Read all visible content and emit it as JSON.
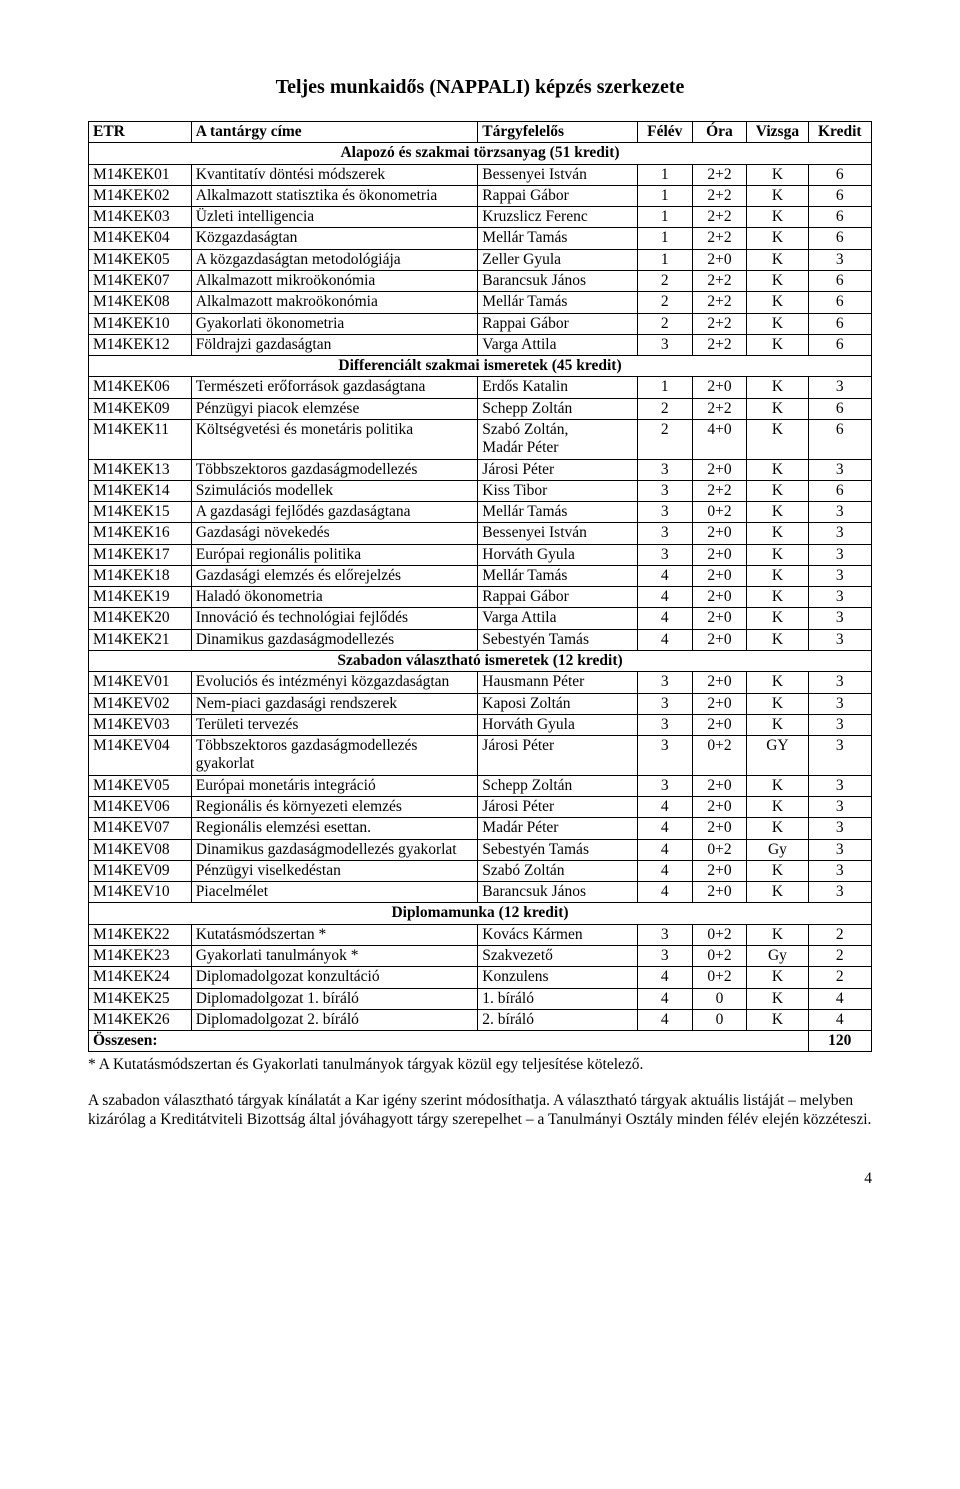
{
  "title": "Teljes munkaidős (NAPPALI) képzés szerkezete",
  "headers": [
    "ETR",
    "A tantárgy címe",
    "Tárgyfelelős",
    "Félév",
    "Óra",
    "Vizsga",
    "Kredit"
  ],
  "sections": [
    {
      "label": "Alapozó és szakmai törzsanyag (51 kredit)",
      "rows": [
        [
          "M14KEK01",
          "Kvantitatív döntési módszerek",
          "Bessenyei István",
          "1",
          "2+2",
          "K",
          "6"
        ],
        [
          "M14KEK02",
          "Alkalmazott statisztika és ökonometria",
          "Rappai Gábor",
          "1",
          "2+2",
          "K",
          "6"
        ],
        [
          "M14KEK03",
          "Üzleti intelligencia",
          "Kruzslicz Ferenc",
          "1",
          "2+2",
          "K",
          "6"
        ],
        [
          "M14KEK04",
          "Közgazdaságtan",
          "Mellár Tamás",
          "1",
          "2+2",
          "K",
          "6"
        ],
        [
          "M14KEK05",
          "A közgazdaságtan metodológiája",
          "Zeller Gyula",
          "1",
          "2+0",
          "K",
          "3"
        ],
        [
          "M14KEK07",
          "Alkalmazott mikroökonómia",
          "Barancsuk János",
          "2",
          "2+2",
          "K",
          "6"
        ],
        [
          "M14KEK08",
          "Alkalmazott makroökonómia",
          "Mellár Tamás",
          "2",
          "2+2",
          "K",
          "6"
        ],
        [
          "M14KEK10",
          "Gyakorlati ökonometria",
          "Rappai Gábor",
          "2",
          "2+2",
          "K",
          "6"
        ],
        [
          "M14KEK12",
          "Földrajzi gazdaságtan",
          "Varga Attila",
          "3",
          "2+2",
          "K",
          "6"
        ]
      ]
    },
    {
      "label": "Differenciált szakmai ismeretek (45 kredit)",
      "rows": [
        [
          "M14KEK06",
          "Természeti erőforrások gazdaságtana",
          "Erdős Katalin",
          "1",
          "2+0",
          "K",
          "3"
        ],
        [
          "M14KEK09",
          "Pénzügyi piacok elemzése",
          "Schepp Zoltán",
          "2",
          "2+2",
          "K",
          "6"
        ],
        [
          "M14KEK11",
          "Költségvetési és monetáris politika",
          "Szabó Zoltán,\nMadár Péter",
          "2",
          "4+0",
          "K",
          "6"
        ],
        [
          "M14KEK13",
          "Többszektoros gazdaságmodellezés",
          "Járosi Péter",
          "3",
          "2+0",
          "K",
          "3"
        ],
        [
          "M14KEK14",
          "Szimulációs modellek",
          "Kiss Tibor",
          "3",
          "2+2",
          "K",
          "6"
        ],
        [
          "M14KEK15",
          "A gazdasági fejlődés gazdaságtana",
          "Mellár Tamás",
          "3",
          "0+2",
          "K",
          "3"
        ],
        [
          "M14KEK16",
          "Gazdasági növekedés",
          "Bessenyei István",
          "3",
          "2+0",
          "K",
          "3"
        ],
        [
          "M14KEK17",
          "Európai regionális politika",
          "Horváth Gyula",
          "3",
          "2+0",
          "K",
          "3"
        ],
        [
          "M14KEK18",
          "Gazdasági elemzés és előrejelzés",
          "Mellár Tamás",
          "4",
          "2+0",
          "K",
          "3"
        ],
        [
          "M14KEK19",
          "Haladó ökonometria",
          "Rappai Gábor",
          "4",
          "2+0",
          "K",
          "3"
        ],
        [
          "M14KEK20",
          "Innováció és technológiai fejlődés",
          "Varga Attila",
          "4",
          "2+0",
          "K",
          "3"
        ],
        [
          "M14KEK21",
          "Dinamikus gazdaságmodellezés",
          "Sebestyén Tamás",
          "4",
          "2+0",
          "K",
          "3"
        ]
      ]
    },
    {
      "label": "Szabadon választható ismeretek (12 kredit)",
      "rows": [
        [
          "M14KEV01",
          "Evoluciós és intézményi közgazdaságtan",
          "Hausmann Péter",
          "3",
          "2+0",
          "K",
          "3"
        ],
        [
          "M14KEV02",
          "Nem-piaci gazdasági rendszerek",
          "Kaposi Zoltán",
          "3",
          "2+0",
          "K",
          "3"
        ],
        [
          "M14KEV03",
          "Területi tervezés",
          "Horváth Gyula",
          "3",
          "2+0",
          "K",
          "3"
        ],
        [
          "M14KEV04",
          "Többszektoros gazdaságmodellezés gyakorlat",
          "Járosi Péter",
          "3",
          "0+2",
          "GY",
          "3"
        ],
        [
          "M14KEV05",
          "Európai monetáris integráció",
          "Schepp Zoltán",
          "3",
          "2+0",
          "K",
          "3"
        ],
        [
          "M14KEV06",
          "Regionális és környezeti elemzés",
          "Járosi Péter",
          "4",
          "2+0",
          "K",
          "3"
        ],
        [
          "M14KEV07",
          "Regionális elemzési esettan.",
          "Madár Péter",
          "4",
          "2+0",
          "K",
          "3"
        ],
        [
          "M14KEV08",
          "Dinamikus gazdaságmodellezés gyakorlat",
          "Sebestyén Tamás",
          "4",
          "0+2",
          "Gy",
          "3"
        ],
        [
          "M14KEV09",
          "Pénzügyi viselkedéstan",
          "Szabó Zoltán",
          "4",
          "2+0",
          "K",
          "3"
        ],
        [
          "M14KEV10",
          "Piacelmélet",
          "Barancsuk János",
          "4",
          "2+0",
          "K",
          "3"
        ]
      ]
    },
    {
      "label": "Diplomamunka (12 kredit)",
      "rows": [
        [
          "M14KEK22",
          "Kutatásmódszertan *",
          "Kovács Kármen",
          "3",
          "0+2",
          "K",
          "2"
        ],
        [
          "M14KEK23",
          "Gyakorlati tanulmányok *",
          "Szakvezető",
          "3",
          "0+2",
          "Gy",
          "2"
        ],
        [
          "M14KEK24",
          "Diplomadolgozat konzultáció",
          "Konzulens",
          "4",
          "0+2",
          "K",
          "2"
        ],
        [
          "M14KEK25",
          "Diplomadolgozat 1. bíráló",
          "1. bíráló",
          "4",
          "0",
          "K",
          "4"
        ],
        [
          "M14KEK26",
          "Diplomadolgozat 2. bíráló",
          "2. bíráló",
          "4",
          "0",
          "K",
          "4"
        ]
      ]
    }
  ],
  "totalLabel": "Összesen:",
  "totalValue": "120",
  "footnote": "* A Kutatásmódszertan és Gyakorlati tanulmányok tárgyak közül egy teljesítése kötelező.",
  "para": "A szabadon választható tárgyak kínálatát a Kar igény szerint módosíthatja. A választható tárgyak aktuális listáját – melyben kizárólag a Kreditátviteli Bizottság által jóváhagyott tárgy szerepelhet – a Tanulmányi Osztály minden félév elején közzéteszi.",
  "pageNo": "4",
  "colWidths": [
    "94",
    "262",
    "146",
    "50",
    "50",
    "56",
    "58"
  ]
}
